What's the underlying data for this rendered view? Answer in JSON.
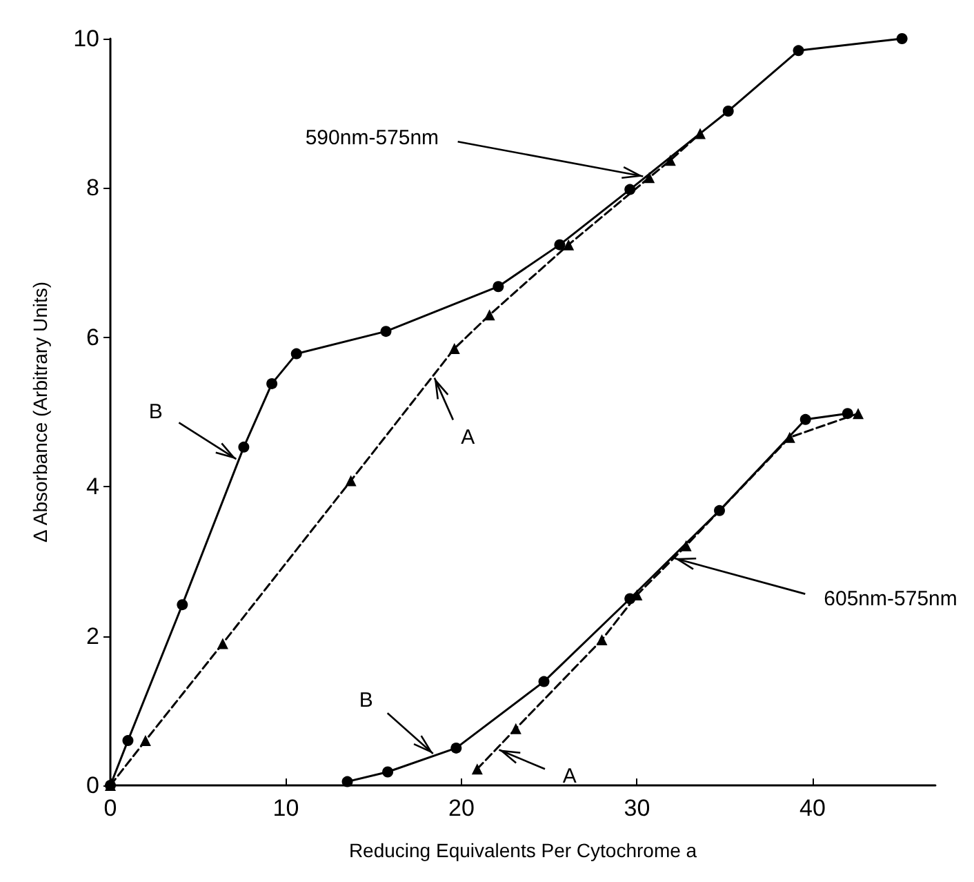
{
  "chart_data": {
    "type": "line",
    "xlabel": "Reducing Equivalents Per Cytochrome a",
    "ylabel": "Δ Absorbance (Arbitrary Units)",
    "xlim": [
      0,
      47
    ],
    "xticks": [
      0,
      10,
      20,
      30,
      40
    ],
    "ylim": [
      0,
      10
    ],
    "yticks": [
      0,
      2,
      4,
      6,
      8,
      10
    ],
    "grid": false,
    "series": [
      {
        "color": "#000000",
        "marker": "triangle",
        "line_style": "dashed",
        "x": [
          0,
          2.0,
          6.4,
          13.7,
          19.6,
          21.6,
          26.1,
          30.7,
          31.9,
          33.6
        ],
        "values": [
          0,
          0.6,
          1.9,
          4.08,
          5.85,
          6.3,
          7.24,
          8.14,
          8.37,
          8.73
        ]
      },
      {
        "color": "#000000",
        "marker": "circle",
        "line_style": "solid",
        "x": [
          0,
          1.0,
          4.1,
          7.6,
          9.2,
          10.6,
          15.7,
          22.1,
          25.6,
          29.6,
          35.2,
          39.2,
          45.1
        ],
        "values": [
          0,
          0.6,
          2.42,
          4.53,
          5.38,
          5.78,
          6.08,
          6.68,
          7.24,
          7.98,
          9.03,
          9.84,
          10.0
        ]
      },
      {
        "color": "#000000",
        "marker": "circle",
        "line_style": "solid",
        "x": [
          13.5,
          15.8,
          19.7,
          24.7,
          29.6,
          34.7,
          39.6,
          42.0
        ],
        "values": [
          0.05,
          0.18,
          0.5,
          1.39,
          2.5,
          3.68,
          4.9,
          4.98
        ]
      },
      {
        "color": "#000000",
        "marker": "triangle",
        "line_style": "dashed",
        "x": [
          20.9,
          23.1,
          28.0,
          30.0,
          32.8,
          38.7,
          42.6
        ],
        "values": [
          0.22,
          0.76,
          1.95,
          2.55,
          3.21,
          4.66,
          4.98
        ]
      }
    ],
    "annotations": [
      {
        "text": "590nm-575nm",
        "x": 30.5,
        "y": 8.15
      },
      {
        "text": "B",
        "x": 7.3,
        "y": 4.35
      },
      {
        "text": "A",
        "x": 18.4,
        "y": 5.49
      },
      {
        "text": "605nm-575nm",
        "x": 32.0,
        "y": 3.05
      },
      {
        "text": "B",
        "x": 18.5,
        "y": 0.4
      },
      {
        "text": "A",
        "x": 22.0,
        "y": 0.49
      }
    ]
  }
}
